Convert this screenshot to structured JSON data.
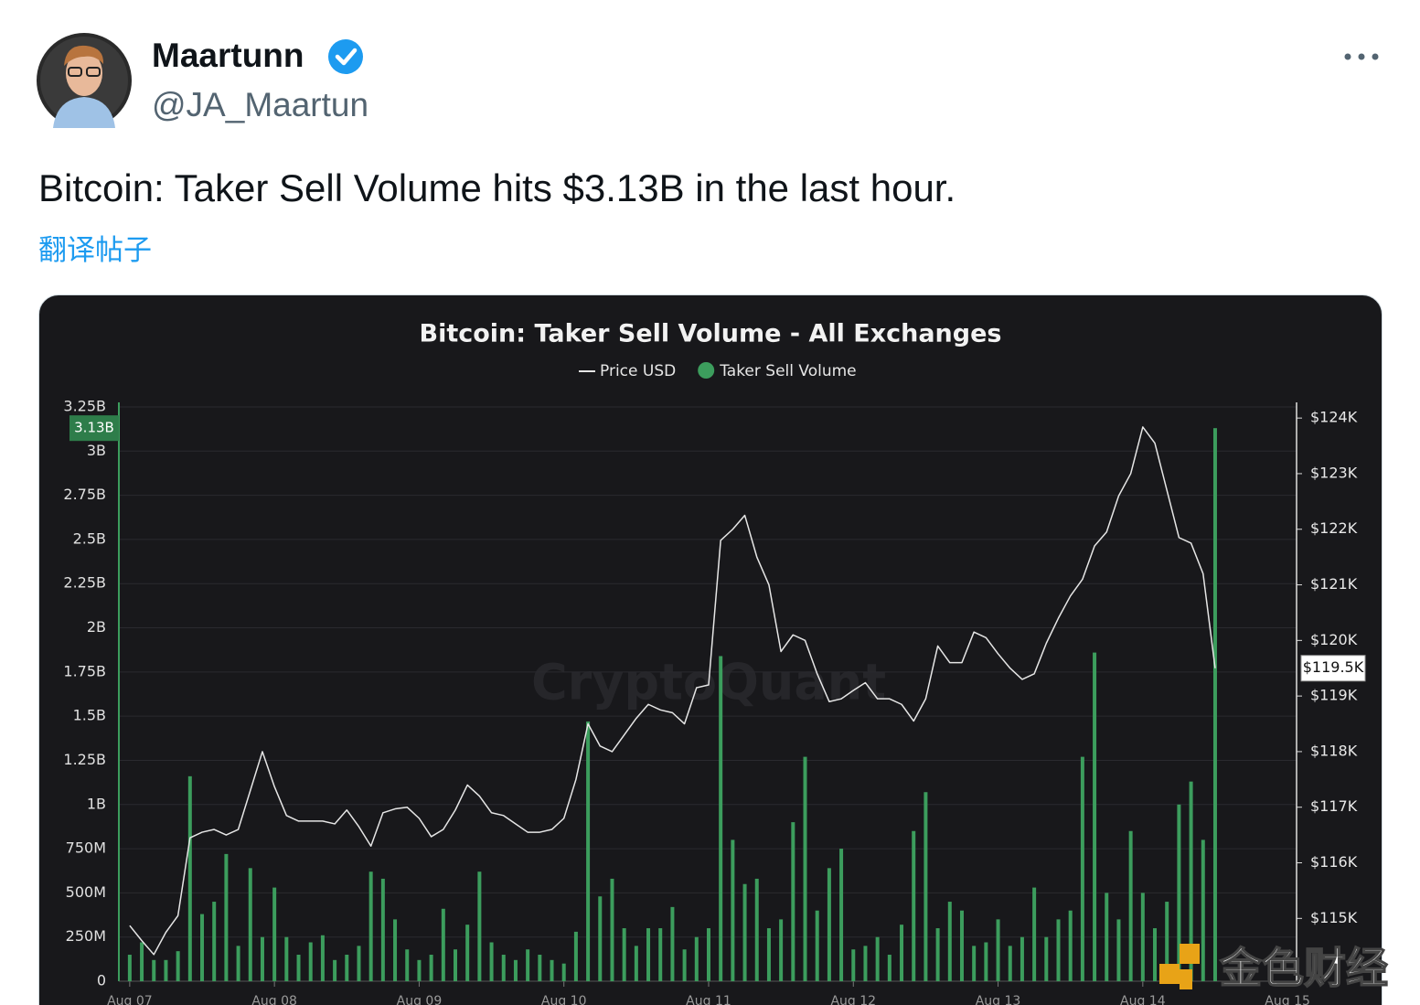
{
  "tweet": {
    "author": {
      "name": "Maartunn",
      "handle": "@JA_Maartun"
    },
    "text": "Bitcoin: Taker Sell Volume hits $3.13B in the last hour.",
    "translate": "翻译帖子"
  },
  "watermarks": [
    "CryptoQuant",
    "金色财经"
  ],
  "chart_data": {
    "type": "combo",
    "title": "Bitcoin: Taker Sell Volume - All Exchanges",
    "x": [
      0,
      2,
      4,
      6,
      8,
      10,
      12,
      14,
      16,
      18,
      20,
      22,
      24,
      26,
      28,
      30,
      32,
      34,
      36,
      38,
      40,
      42,
      44,
      46,
      48,
      50,
      52,
      54,
      56,
      58,
      60,
      62,
      64,
      66,
      68,
      70,
      72,
      74,
      76,
      78,
      80,
      82,
      84,
      86,
      88,
      90,
      92,
      94,
      96,
      98,
      100,
      102,
      104,
      106,
      108,
      110,
      112,
      114,
      116,
      118,
      120,
      122,
      124,
      126,
      128,
      130,
      132,
      134,
      136,
      138,
      140,
      142,
      144,
      146,
      148,
      150,
      152,
      154,
      156,
      158,
      160,
      162,
      164,
      166,
      168,
      170,
      172,
      174,
      176,
      178,
      180
    ],
    "xlim": [
      -1.8,
      193.5
    ],
    "xticks": [
      {
        "value": 0,
        "label": "Aug 07"
      },
      {
        "value": 24,
        "label": "Aug 08"
      },
      {
        "value": 48,
        "label": "Aug 09"
      },
      {
        "value": 72,
        "label": "Aug 10"
      },
      {
        "value": 96,
        "label": "Aug 11"
      },
      {
        "value": 120,
        "label": "Aug 12"
      },
      {
        "value": 144,
        "label": "Aug 13"
      },
      {
        "value": 168,
        "label": "Aug 14"
      },
      {
        "value": 192,
        "label": "Aug 15"
      }
    ],
    "ylim": [
      0,
      3.25
    ],
    "yticks": [
      0,
      {
        "value": 0.25,
        "label": "250M"
      },
      {
        "value": 0.5,
        "label": "500M"
      },
      {
        "value": 0.75,
        "label": "750M"
      },
      {
        "value": 1,
        "label": "1B"
      },
      {
        "value": 1.25,
        "label": "1.25B"
      },
      {
        "value": 1.5,
        "label": "1.5B"
      },
      {
        "value": 1.75,
        "label": "1.75B"
      },
      {
        "value": 2,
        "label": "2B"
      },
      {
        "value": 2.25,
        "label": "2.25B"
      },
      {
        "value": 2.5,
        "label": "2.5B"
      },
      {
        "value": 2.75,
        "label": "2.75B"
      },
      {
        "value": 3,
        "label": "3B"
      },
      {
        "value": 3.25,
        "label": "3.25B"
      }
    ],
    "y2lim": [
      113.87,
      124.2
    ],
    "y2ticks": [
      {
        "value": 115,
        "label": "$115K"
      },
      {
        "value": 116,
        "label": "$116K"
      },
      {
        "value": 117,
        "label": "$117K"
      },
      {
        "value": 118,
        "label": "$118K"
      },
      {
        "value": 119,
        "label": "$119K"
      },
      {
        "value": 120,
        "label": "$120K"
      },
      {
        "value": 121,
        "label": "$121K"
      },
      {
        "value": 122,
        "label": "$122K"
      },
      {
        "value": 123,
        "label": "$123K"
      },
      {
        "value": 124,
        "label": "$124K"
      }
    ],
    "grid": true,
    "series": [
      {
        "name": "Price USD",
        "type": "line",
        "axis": "y2",
        "color": "#e6e6e6",
        "values": [
          114.87,
          114.6,
          114.35,
          114.75,
          115.05,
          116.45,
          116.55,
          116.6,
          116.5,
          116.6,
          117.3,
          118.0,
          117.37,
          116.85,
          116.75,
          116.75,
          116.75,
          116.7,
          116.95,
          116.65,
          116.3,
          116.9,
          116.97,
          117.0,
          116.8,
          116.47,
          116.6,
          116.95,
          117.4,
          117.2,
          116.9,
          116.85,
          116.7,
          116.55,
          116.55,
          116.6,
          116.8,
          117.5,
          118.5,
          118.1,
          118.0,
          118.3,
          118.6,
          118.85,
          118.75,
          118.7,
          118.5,
          119.15,
          119.2,
          121.8,
          122.0,
          122.25,
          121.5,
          121.0,
          119.8,
          120.1,
          120.0,
          119.4,
          118.9,
          118.95,
          119.1,
          119.24,
          118.95,
          118.95,
          118.85,
          118.55,
          118.95,
          119.9,
          119.6,
          119.6,
          120.15,
          120.05,
          119.76,
          119.5,
          119.3,
          119.4,
          119.95,
          120.4,
          120.8,
          121.1,
          121.7,
          121.95,
          122.6,
          123.0,
          123.84,
          123.55,
          122.7,
          121.85,
          121.75,
          121.2,
          119.5
        ]
      },
      {
        "name": "Taker Sell Volume",
        "type": "bar",
        "color": "#3c9d5d",
        "values": [
          0.15,
          0.22,
          0.12,
          0.12,
          0.17,
          1.16,
          0.38,
          0.45,
          0.72,
          0.2,
          0.64,
          0.25,
          0.53,
          0.25,
          0.15,
          0.22,
          0.26,
          0.12,
          0.15,
          0.2,
          0.62,
          0.58,
          0.35,
          0.18,
          0.12,
          0.15,
          0.41,
          0.18,
          0.32,
          0.62,
          0.22,
          0.15,
          0.12,
          0.18,
          0.15,
          0.12,
          0.1,
          0.28,
          1.47,
          0.48,
          0.58,
          0.3,
          0.2,
          0.3,
          0.3,
          0.42,
          0.18,
          0.25,
          0.3,
          1.84,
          0.8,
          0.55,
          0.58,
          0.3,
          0.35,
          0.9,
          1.27,
          0.4,
          0.64,
          0.75,
          0.18,
          0.2,
          0.25,
          0.15,
          0.32,
          0.85,
          1.07,
          0.3,
          0.45,
          0.4,
          0.2,
          0.22,
          0.35,
          0.2,
          0.25,
          0.53,
          0.25,
          0.35,
          0.4,
          1.27,
          1.86,
          0.5,
          0.35,
          0.85,
          0.5,
          0.3,
          0.45,
          1.0,
          1.13,
          0.8,
          3.13
        ]
      }
    ],
    "annotations": [
      {
        "axis": "y",
        "value": 3.13,
        "label": "3.13B"
      },
      {
        "axis": "y2",
        "value": 119.5,
        "label": "$119.5K"
      }
    ]
  }
}
